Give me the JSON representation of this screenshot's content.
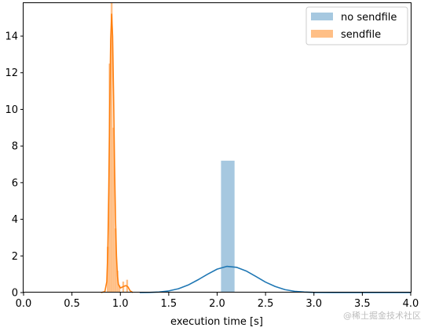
{
  "chart_data": {
    "type": "histogram-kde",
    "title": "",
    "xlabel": "execution time [s]",
    "ylabel": "",
    "xlim": [
      0.0,
      4.0
    ],
    "ylim": [
      0,
      15.8
    ],
    "xticks": [
      "0.0",
      "0.5",
      "1.0",
      "1.5",
      "2.0",
      "2.5",
      "3.0",
      "3.5",
      "4.0"
    ],
    "yticks": [
      "0",
      "2",
      "4",
      "6",
      "8",
      "10",
      "12",
      "14"
    ],
    "grid": false,
    "legend_position": "top-right",
    "series": [
      {
        "name": "no sendfile",
        "hist_color": "#a6c8e0",
        "kde_color": "#1f77b4",
        "bars": [
          {
            "x0": 2.04,
            "x1": 2.18,
            "height": 7.2
          }
        ],
        "kde": [
          [
            1.2,
            0.0
          ],
          [
            1.3,
            0.01
          ],
          [
            1.4,
            0.03
          ],
          [
            1.5,
            0.09
          ],
          [
            1.6,
            0.21
          ],
          [
            1.7,
            0.41
          ],
          [
            1.8,
            0.69
          ],
          [
            1.9,
            1.0
          ],
          [
            2.0,
            1.28
          ],
          [
            2.1,
            1.43
          ],
          [
            2.2,
            1.38
          ],
          [
            2.3,
            1.18
          ],
          [
            2.4,
            0.88
          ],
          [
            2.5,
            0.57
          ],
          [
            2.6,
            0.33
          ],
          [
            2.7,
            0.16
          ],
          [
            2.8,
            0.07
          ],
          [
            2.9,
            0.03
          ],
          [
            3.0,
            0.01
          ],
          [
            3.2,
            0.0
          ],
          [
            3.6,
            0.0
          ],
          [
            4.0,
            0.0
          ]
        ]
      },
      {
        "name": "sendfile",
        "hist_color": "#ffbf86",
        "kde_color": "#ff7f0e",
        "bars": [
          {
            "x0": 0.86,
            "x1": 0.88,
            "height": 2.5
          },
          {
            "x0": 0.88,
            "x1": 0.9,
            "height": 12.5
          },
          {
            "x0": 0.9,
            "x1": 0.92,
            "height": 15.8
          },
          {
            "x0": 0.92,
            "x1": 0.94,
            "height": 9.0
          },
          {
            "x0": 0.94,
            "x1": 0.96,
            "height": 3.5
          },
          {
            "x0": 0.96,
            "x1": 0.98,
            "height": 1.2
          },
          {
            "x0": 0.98,
            "x1": 1.0,
            "height": 0.4
          },
          {
            "x0": 1.02,
            "x1": 1.04,
            "height": 0.6
          },
          {
            "x0": 1.06,
            "x1": 1.08,
            "height": 0.7
          }
        ],
        "kde": [
          [
            0.8,
            0.0
          ],
          [
            0.84,
            0.05
          ],
          [
            0.86,
            0.6
          ],
          [
            0.87,
            2.2
          ],
          [
            0.88,
            5.5
          ],
          [
            0.89,
            10.0
          ],
          [
            0.9,
            13.8
          ],
          [
            0.91,
            15.2
          ],
          [
            0.92,
            14.0
          ],
          [
            0.93,
            10.8
          ],
          [
            0.94,
            7.0
          ],
          [
            0.95,
            4.0
          ],
          [
            0.96,
            2.0
          ],
          [
            0.97,
            0.9
          ],
          [
            0.98,
            0.45
          ],
          [
            1.0,
            0.25
          ],
          [
            1.02,
            0.3
          ],
          [
            1.04,
            0.35
          ],
          [
            1.06,
            0.38
          ],
          [
            1.08,
            0.3
          ],
          [
            1.1,
            0.1
          ],
          [
            1.13,
            0.0
          ]
        ]
      }
    ]
  },
  "watermark": "@稀土掘金技术社区"
}
